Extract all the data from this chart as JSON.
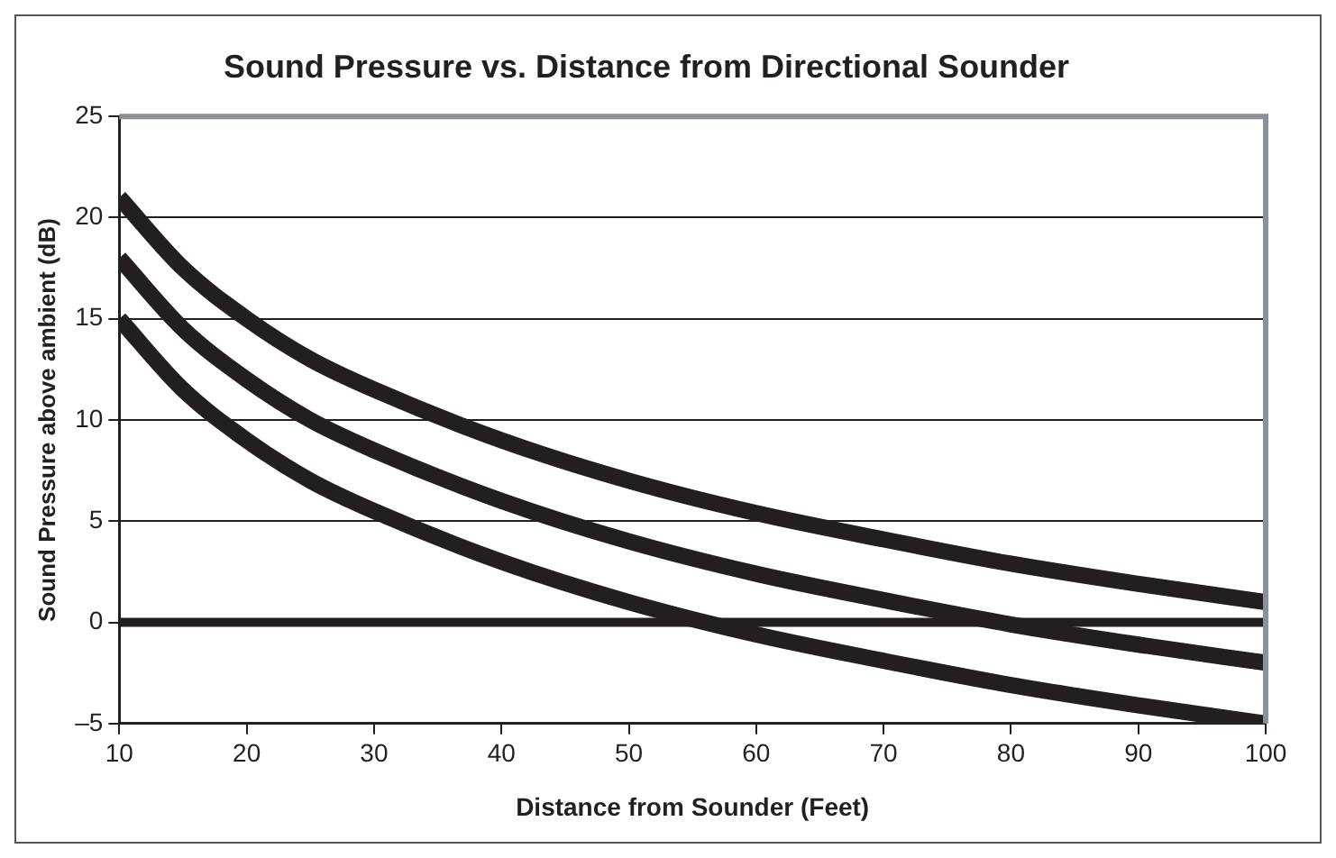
{
  "chart_data": {
    "type": "line",
    "title": "Sound Pressure vs. Distance from Directional Sounder",
    "xlabel": "Distance from Sounder (Feet)",
    "ylabel": "Sound Pressure above ambient (dB)",
    "x": [
      10,
      15,
      20,
      25,
      30,
      40,
      50,
      60,
      70,
      80,
      90,
      100
    ],
    "series": [
      {
        "color": "#231f20",
        "values": [
          21,
          17.5,
          15,
          13,
          11.5,
          9,
          7,
          5.4,
          4.1,
          2.9,
          1.9,
          1
        ]
      },
      {
        "color": "#231f20",
        "values": [
          18,
          14.5,
          12,
          10,
          8.5,
          6,
          4,
          2.4,
          1.1,
          -0.1,
          -1.1,
          -2
        ]
      },
      {
        "color": "#231f20",
        "values": [
          15,
          11.5,
          9,
          7,
          5.5,
          3,
          1,
          -0.6,
          -1.9,
          -3.1,
          -4.1,
          -5
        ]
      }
    ],
    "xlim": [
      10,
      100
    ],
    "xticks": [
      10,
      20,
      30,
      40,
      50,
      60,
      70,
      80,
      90,
      100
    ],
    "ylim": [
      -5,
      25
    ],
    "yticks": [
      {
        "value": -5,
        "label": "–5"
      },
      0,
      5,
      10,
      15,
      20,
      25
    ],
    "ref_lines": [
      {
        "axis": "y",
        "value": 0,
        "color": "#231f20"
      }
    ],
    "grid": "y",
    "legend": false,
    "marker": "none",
    "line_style": "solid"
  }
}
